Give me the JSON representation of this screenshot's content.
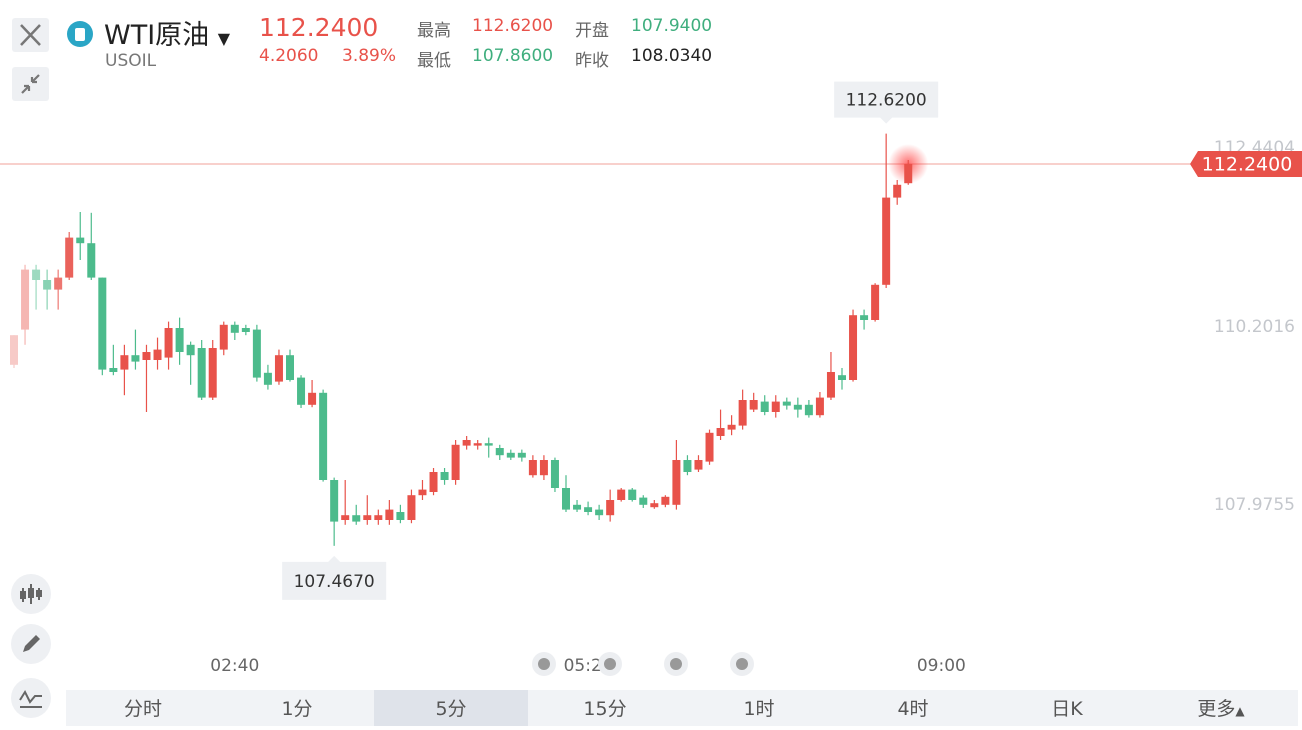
{
  "header": {
    "name": "WTI原油",
    "code": "USOIL",
    "price": "112.2400",
    "change": "4.2060",
    "change_pct": "3.89%",
    "stats": [
      {
        "label": "最高",
        "value": "112.6200"
      },
      {
        "label": "开盘",
        "value": "107.9400"
      },
      {
        "label": "最低",
        "value": "107.8600"
      },
      {
        "label": "昨收",
        "value": "108.0340"
      }
    ]
  },
  "chart_data": {
    "type": "candlestick",
    "up_color": "#e8524a",
    "down_color": "#4cbb8c",
    "ylim": [
      106.165,
      112.79
    ],
    "yticks": [
      107.9755,
      110.2016,
      112.4404
    ],
    "x_labels": [
      {
        "index": 20,
        "label": "02:40"
      },
      {
        "index": 52,
        "label": "05:20"
      },
      {
        "index": 84,
        "label": "09:00"
      }
    ],
    "max_label": "112.6200",
    "min_label": "107.4670",
    "last_label": "112.2400",
    "open": [
      109.73,
      110.17,
      110.92,
      110.79,
      110.67,
      110.82,
      111.32,
      111.25,
      110.82,
      109.69,
      109.67,
      109.85,
      109.79,
      109.79,
      109.82,
      110.19,
      109.98,
      109.94,
      109.32,
      109.92,
      110.23,
      110.19,
      110.17,
      109.63,
      109.52,
      109.85,
      109.57,
      109.23,
      109.38,
      108.29,
      107.79,
      107.85,
      107.79,
      107.79,
      107.79,
      107.89,
      107.79,
      108.1,
      108.14,
      108.39,
      108.29,
      108.72,
      108.72,
      108.75,
      108.69,
      108.63,
      108.63,
      108.35,
      108.35,
      108.54,
      108.19,
      107.98,
      107.95,
      107.92,
      107.85,
      108.04,
      108.17,
      108.07,
      107.95,
      107.98,
      107.98,
      108.54,
      108.42,
      108.52,
      108.84,
      108.92,
      108.97,
      109.17,
      109.27,
      109.14,
      109.27,
      109.23,
      109.23,
      109.1,
      109.32,
      109.6,
      109.54,
      110.35,
      110.29,
      110.73,
      111.82,
      112.0
    ],
    "high": [
      110.1,
      110.98,
      110.98,
      110.92,
      110.92,
      111.39,
      111.64,
      111.63,
      110.82,
      109.98,
      109.98,
      110.17,
      109.98,
      110.07,
      110.27,
      110.32,
      110.02,
      110.04,
      110.04,
      110.27,
      110.27,
      110.23,
      110.23,
      109.73,
      109.92,
      109.92,
      109.6,
      109.54,
      109.42,
      108.32,
      108.29,
      107.98,
      108.1,
      107.92,
      108.04,
      107.98,
      108.17,
      108.29,
      108.44,
      108.44,
      108.79,
      108.84,
      108.79,
      108.82,
      108.73,
      108.67,
      108.67,
      108.6,
      108.6,
      108.57,
      108.35,
      108.04,
      108.02,
      107.98,
      108.17,
      108.19,
      108.19,
      108.1,
      108.04,
      108.1,
      108.79,
      108.6,
      108.6,
      108.92,
      109.17,
      109.1,
      109.42,
      109.38,
      109.35,
      109.35,
      109.32,
      109.32,
      109.29,
      109.39,
      109.89,
      109.69,
      110.42,
      110.42,
      110.75,
      112.62,
      112.04,
      112.29
    ],
    "low": [
      109.69,
      109.98,
      110.42,
      110.42,
      110.42,
      110.79,
      111.04,
      110.79,
      109.6,
      109.6,
      109.35,
      109.67,
      109.14,
      109.67,
      109.67,
      109.73,
      109.48,
      109.29,
      109.29,
      109.85,
      110.04,
      110.1,
      109.52,
      109.42,
      109.48,
      109.52,
      109.19,
      109.2,
      108.27,
      107.467,
      107.73,
      107.73,
      107.73,
      107.73,
      107.73,
      107.75,
      107.75,
      108.04,
      108.1,
      108.23,
      108.23,
      108.67,
      108.67,
      108.57,
      108.54,
      108.54,
      108.52,
      108.32,
      108.29,
      108.14,
      107.89,
      107.89,
      107.85,
      107.79,
      107.77,
      108.02,
      108.02,
      107.94,
      107.93,
      107.95,
      107.92,
      108.35,
      108.39,
      108.48,
      108.79,
      108.85,
      108.92,
      109.14,
      109.1,
      109.07,
      109.17,
      109.07,
      109.07,
      109.07,
      109.29,
      109.42,
      109.52,
      110.17,
      110.27,
      110.69,
      111.73,
      111.98
    ],
    "close": [
      110.1,
      110.92,
      110.79,
      110.67,
      110.82,
      111.32,
      111.25,
      110.82,
      109.67,
      109.64,
      109.85,
      109.77,
      109.89,
      109.92,
      110.19,
      109.89,
      109.85,
      109.32,
      109.94,
      110.23,
      110.13,
      110.14,
      109.57,
      109.48,
      109.85,
      109.54,
      109.23,
      109.38,
      108.29,
      107.77,
      107.85,
      107.77,
      107.85,
      107.85,
      107.92,
      107.79,
      108.1,
      108.17,
      108.39,
      108.29,
      108.73,
      108.79,
      108.75,
      108.72,
      108.6,
      108.57,
      108.57,
      108.54,
      108.54,
      108.19,
      107.92,
      107.92,
      107.89,
      107.85,
      108.04,
      108.17,
      108.04,
      107.98,
      108.0,
      108.08,
      108.54,
      108.39,
      108.54,
      108.88,
      108.94,
      108.98,
      109.29,
      109.29,
      109.14,
      109.27,
      109.22,
      109.17,
      109.1,
      109.32,
      109.64,
      109.54,
      110.35,
      110.29,
      110.73,
      111.82,
      111.98,
      112.24
    ]
  },
  "tabs": [
    "分时",
    "1分",
    "5分",
    "15分",
    "1时",
    "4时",
    "日K",
    "更多"
  ],
  "selected_tab": 2
}
